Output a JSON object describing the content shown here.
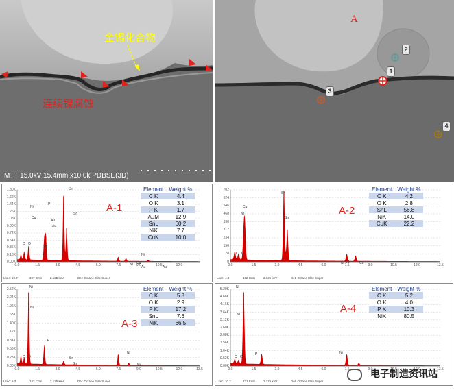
{
  "sem_left": {
    "label_imc": "金锡化合物",
    "label_corrosion": "连续镍腐蚀",
    "caption": "MTT 15.0kV 15.4mm x10.0k PDBSE(3D)"
  },
  "sem_right": {
    "label_a": "A",
    "spots": [
      "1",
      "2",
      "3",
      "4"
    ]
  },
  "eds": [
    {
      "title": "A-1",
      "status": [
        "Lsec: 19.7",
        "607 Cnts",
        "2.125 keV",
        "Det: Octane Elite Super"
      ],
      "y_ticks": [
        "0.00K",
        "0.18K",
        "0.36K",
        "0.54K",
        "0.72K",
        "0.90K",
        "1.08K",
        "1.26K",
        "1.44K",
        "1.62K",
        "1.80K"
      ],
      "x_ticks": [
        "0.0",
        "1.5",
        "3.0",
        "4.5",
        "6.0",
        "7.5",
        "9.0",
        "10.5",
        "12.0"
      ],
      "peak_labels": [
        "Sn",
        "Sn",
        "Ni",
        "Cu",
        "C",
        "O",
        "P",
        "Au",
        "Au",
        "Sn",
        "Ni",
        "Cu",
        "Au",
        "Au",
        "Ni"
      ],
      "table": {
        "headers": [
          "Element",
          "Weight %"
        ],
        "rows": [
          [
            "C K",
            "4.4"
          ],
          [
            "O K",
            "3.1"
          ],
          [
            "P K",
            "1.7"
          ],
          [
            "AuM",
            "12.9"
          ],
          [
            "SnL",
            "60.2"
          ],
          [
            "NiK",
            "7.7"
          ],
          [
            "CuK",
            "10.0"
          ]
        ]
      },
      "chart_data": {
        "type": "area",
        "xlabel": "keV",
        "xlim": [
          0,
          13.5
        ],
        "ylim": [
          0,
          1.8
        ],
        "peaks_kev": [
          0.28,
          0.52,
          0.85,
          2.01,
          2.12,
          3.44,
          3.66,
          7.48,
          8.05,
          9.7
        ],
        "peaks_counts_k": [
          0.12,
          0.2,
          0.35,
          0.55,
          0.62,
          1.64,
          0.84,
          0.1,
          0.07,
          0.03
        ]
      }
    },
    {
      "title": "A-2",
      "status": [
        "Lsec: 4.8",
        "102 Cnts",
        "2.125 keV",
        "Det: Octane Elite Super"
      ],
      "y_ticks": [
        "0",
        "78",
        "156",
        "234",
        "312",
        "390",
        "468",
        "546",
        "624",
        "702"
      ],
      "x_ticks": [
        "0.0",
        "1.5",
        "3.0",
        "4.5",
        "6.0",
        "7.5",
        "9.0",
        "10.5",
        "12.0",
        "13.5"
      ],
      "peak_labels": [
        "Sn",
        "Cu",
        "Ni",
        "Sn",
        "C",
        "O",
        "Ni",
        "Cu",
        "Cu"
      ],
      "table": {
        "headers": [
          "Element",
          "Weight %"
        ],
        "rows": [
          [
            "C K",
            "4.2"
          ],
          [
            "O K",
            "2.8"
          ],
          [
            "SnL",
            "56.8"
          ],
          [
            "NiK",
            "14.0"
          ],
          [
            "CuK",
            "22.2"
          ]
        ]
      },
      "chart_data": {
        "type": "area",
        "xlabel": "keV",
        "xlim": [
          0,
          13.5
        ],
        "ylim": [
          0,
          702
        ],
        "peaks_kev": [
          0.28,
          0.52,
          0.85,
          0.93,
          3.44,
          3.66,
          7.48,
          8.05
        ],
        "peaks_counts": [
          80,
          60,
          260,
          330,
          690,
          310,
          70,
          55
        ]
      }
    },
    {
      "title": "A-3",
      "status": [
        "Lsec: 6.3",
        "142 Cnts",
        "2.125 keV",
        "Det: Octane Elite Super"
      ],
      "y_ticks": [
        "0.00K",
        "0.28K",
        "0.56K",
        "0.84K",
        "1.12K",
        "1.40K",
        "1.68K",
        "1.96K",
        "2.24K",
        "2.52K"
      ],
      "x_ticks": [
        "0.0",
        "1.5",
        "3.0",
        "4.5",
        "6.0",
        "7.5",
        "9.0",
        "10.5",
        "12.0",
        "13.5"
      ],
      "peak_labels": [
        "Ni",
        "Ni",
        "P",
        "Sn",
        "C",
        "O",
        "Sn",
        "Ni",
        "Ni"
      ],
      "table": {
        "headers": [
          "Element",
          "Weight %"
        ],
        "rows": [
          [
            "C K",
            "5.8"
          ],
          [
            "O K",
            "2.9"
          ],
          [
            "P K",
            "17.2"
          ],
          [
            "SnL",
            "7.6"
          ],
          [
            "NiK",
            "66.5"
          ]
        ]
      },
      "chart_data": {
        "type": "area",
        "xlabel": "keV",
        "xlim": [
          0,
          13.5
        ],
        "ylim": [
          0,
          2.52
        ],
        "peaks_kev": [
          0.28,
          0.52,
          0.85,
          2.01,
          3.44,
          7.48,
          8.26
        ],
        "peaks_counts_k": [
          0.25,
          0.2,
          2.4,
          0.62,
          0.12,
          0.36,
          0.08
        ]
      }
    },
    {
      "title": "A-4",
      "status": [
        "Lsec: 10.7",
        "231 Cnts",
        "2.125 keV",
        "Det: Octane Elite Super"
      ],
      "y_ticks": [
        "0.00K",
        "0.52K",
        "1.04K",
        "1.56K",
        "2.08K",
        "2.60K",
        "3.12K",
        "3.64K",
        "4.16K",
        "4.68K",
        "5.20K"
      ],
      "x_ticks": [
        "0.0",
        "1.5",
        "3.0",
        "4.5",
        "6.0",
        "7.5",
        "9.0",
        "10.5",
        "12.0",
        "13.5"
      ],
      "peak_labels": [
        "Ni",
        "Ni",
        "C",
        "O",
        "P",
        "Ni"
      ],
      "table": {
        "headers": [
          "Element",
          "Weight %"
        ],
        "rows": [
          [
            "C K",
            "5.2"
          ],
          [
            "O K",
            "4.0"
          ],
          [
            "P K",
            "10.3"
          ],
          [
            "NiK",
            "80.5"
          ]
        ]
      },
      "chart_data": {
        "type": "area",
        "xlabel": "keV",
        "xlim": [
          0,
          13.5
        ],
        "ylim": [
          0,
          5.2
        ],
        "peaks_kev": [
          0.28,
          0.52,
          0.85,
          2.01,
          7.48,
          8.26
        ],
        "peaks_counts_k": [
          0.3,
          0.25,
          4.95,
          0.7,
          0.75,
          0.15
        ]
      }
    }
  ],
  "watermark": "电子制造资讯站",
  "colors": {
    "spectrum": "#d40000",
    "annotation_red": "#e0231e",
    "annotation_yellow": "#ffff00",
    "table_band": "#c9d6ec"
  }
}
